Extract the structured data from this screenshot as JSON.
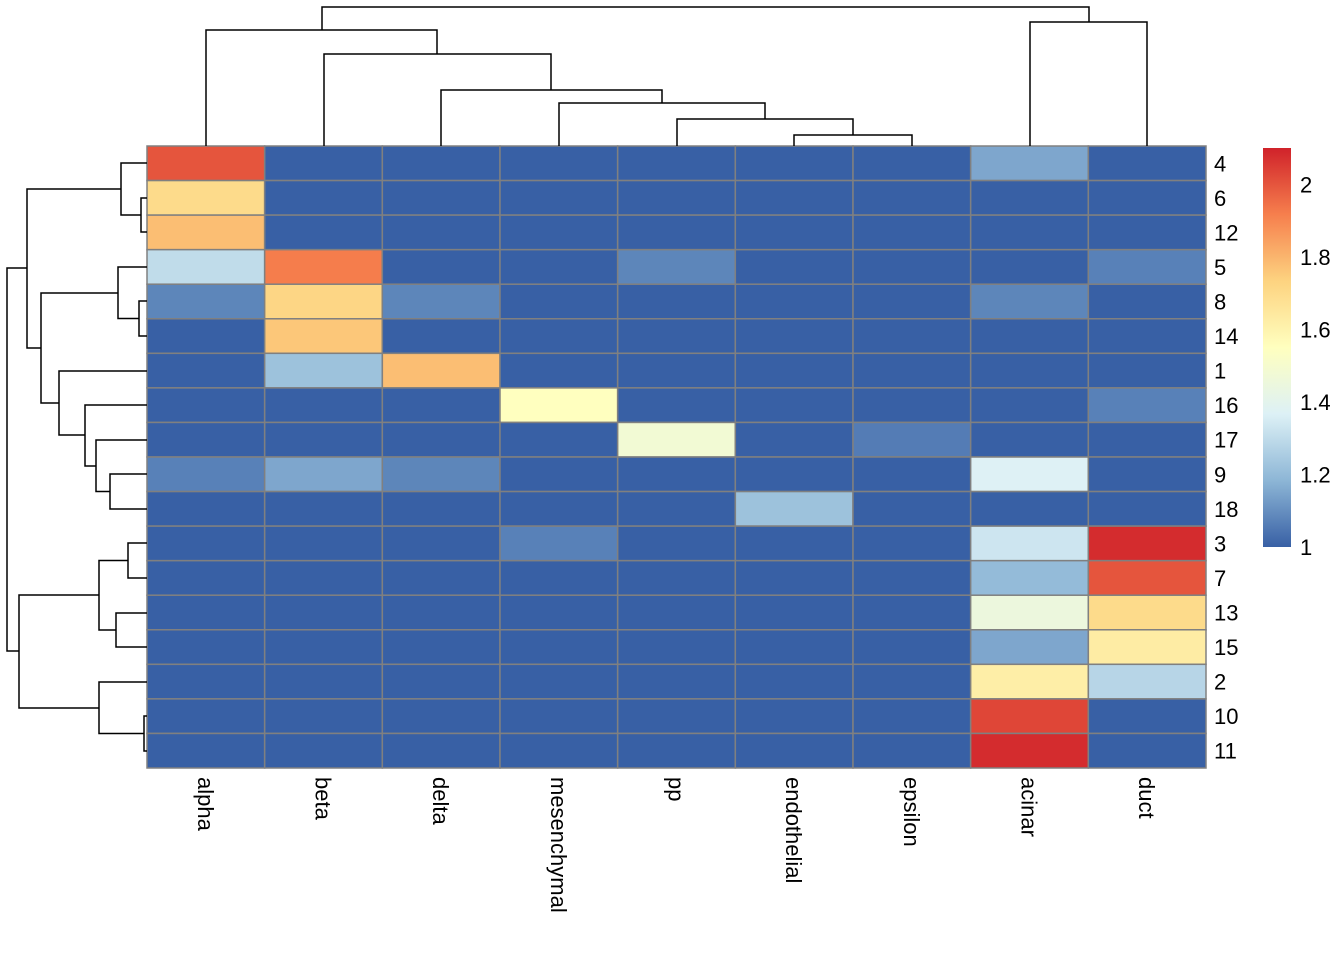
{
  "chart_data": {
    "type": "heatmap",
    "title": "",
    "columns": [
      "alpha",
      "beta",
      "delta",
      "mesenchymal",
      "pp",
      "endothelial",
      "epsilon",
      "acinar",
      "duct"
    ],
    "rows": [
      "4",
      "6",
      "12",
      "5",
      "8",
      "14",
      "1",
      "16",
      "17",
      "9",
      "18",
      "3",
      "7",
      "13",
      "15",
      "2",
      "10",
      "11"
    ],
    "values": [
      [
        2.0,
        1.0,
        1.0,
        1.0,
        1.0,
        1.0,
        1.0,
        1.15,
        1.0
      ],
      [
        1.7,
        1.0,
        1.0,
        1.0,
        1.0,
        1.0,
        1.0,
        1.0,
        1.0
      ],
      [
        1.78,
        1.0,
        1.0,
        1.0,
        1.0,
        1.0,
        1.0,
        1.0,
        1.0
      ],
      [
        1.3,
        1.92,
        1.0,
        1.0,
        1.08,
        1.0,
        1.0,
        1.0,
        1.07
      ],
      [
        1.08,
        1.72,
        1.08,
        1.0,
        1.0,
        1.0,
        1.0,
        1.08,
        1.0
      ],
      [
        1.0,
        1.76,
        1.0,
        1.0,
        1.0,
        1.0,
        1.0,
        1.0,
        1.0
      ],
      [
        1.0,
        1.22,
        1.78,
        1.0,
        1.0,
        1.0,
        1.0,
        1.0,
        1.0
      ],
      [
        1.0,
        1.0,
        1.0,
        1.55,
        1.0,
        1.0,
        1.0,
        1.0,
        1.07
      ],
      [
        1.0,
        1.0,
        1.0,
        1.0,
        1.48,
        1.0,
        1.06,
        1.0,
        1.0
      ],
      [
        1.07,
        1.15,
        1.08,
        1.0,
        1.0,
        1.0,
        1.0,
        1.37,
        1.0
      ],
      [
        1.0,
        1.0,
        1.0,
        1.0,
        1.0,
        1.22,
        1.0,
        1.0,
        1.0
      ],
      [
        1.0,
        1.0,
        1.0,
        1.07,
        1.0,
        1.0,
        1.0,
        1.33,
        2.08
      ],
      [
        1.0,
        1.0,
        1.0,
        1.0,
        1.0,
        1.0,
        1.0,
        1.2,
        2.0
      ],
      [
        1.0,
        1.0,
        1.0,
        1.0,
        1.0,
        1.0,
        1.0,
        1.45,
        1.7
      ],
      [
        1.0,
        1.0,
        1.0,
        1.0,
        1.0,
        1.0,
        1.0,
        1.15,
        1.63
      ],
      [
        1.0,
        1.0,
        1.0,
        1.0,
        1.0,
        1.0,
        1.0,
        1.62,
        1.28
      ],
      [
        1.0,
        1.0,
        1.0,
        1.0,
        1.0,
        1.0,
        1.0,
        2.03,
        1.0
      ],
      [
        1.0,
        1.0,
        1.0,
        1.0,
        1.0,
        1.0,
        1.0,
        2.08,
        1.0
      ]
    ],
    "color_range": [
      1,
      2.1
    ],
    "colors": [
      "#3860A5",
      "#8DB6D6",
      "#DDF1F6",
      "#FFFFBF",
      "#FDD380",
      "#F67F4D",
      "#D0222A"
    ],
    "cell_border_color": "#808080",
    "legend": {
      "ticks": [
        "1",
        "1.2",
        "1.4",
        "1.6",
        "1.8",
        "2"
      ],
      "tick_values": [
        1,
        1.2,
        1.4,
        1.6,
        1.8,
        2
      ],
      "placement": "right"
    },
    "row_dendrogram": true,
    "column_dendrogram": true
  }
}
